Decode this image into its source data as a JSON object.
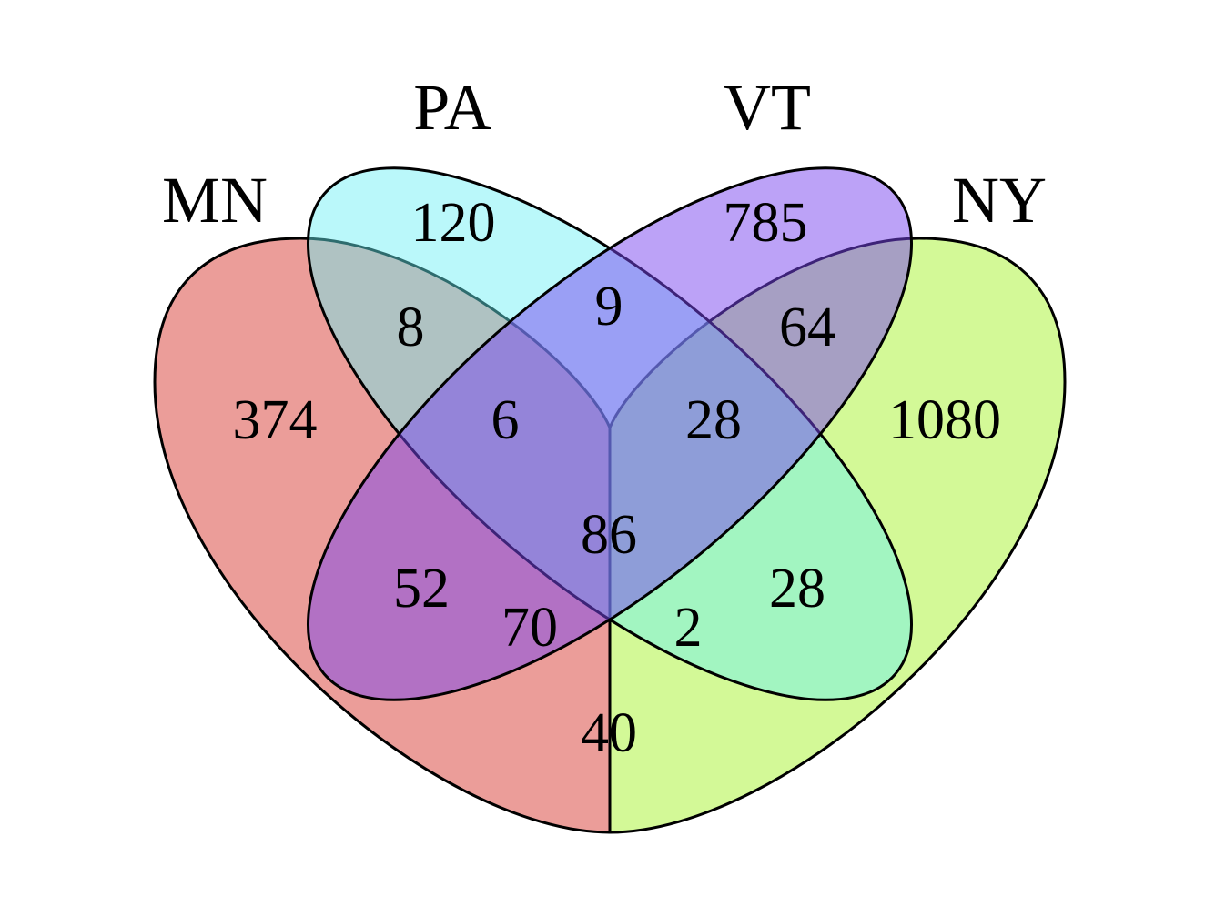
{
  "sets": [
    {
      "id": "MN",
      "label": "MN",
      "color": "#E26F69"
    },
    {
      "id": "PA",
      "label": "PA",
      "color": "#66F0F4"
    },
    {
      "id": "VT",
      "label": "VT",
      "color": "#7A45F0"
    },
    {
      "id": "NY",
      "label": "NY",
      "color": "#B4F54C"
    }
  ],
  "regions": [
    {
      "sets": [
        "MN"
      ],
      "count": "374"
    },
    {
      "sets": [
        "PA"
      ],
      "count": "120"
    },
    {
      "sets": [
        "VT"
      ],
      "count": "785"
    },
    {
      "sets": [
        "NY"
      ],
      "count": "1080"
    },
    {
      "sets": [
        "MN",
        "PA"
      ],
      "count": "8"
    },
    {
      "sets": [
        "PA",
        "VT"
      ],
      "count": "9"
    },
    {
      "sets": [
        "VT",
        "NY"
      ],
      "count": "64"
    },
    {
      "sets": [
        "MN",
        "PA",
        "VT"
      ],
      "count": "6"
    },
    {
      "sets": [
        "PA",
        "VT",
        "NY"
      ],
      "count": "28"
    },
    {
      "sets": [
        "MN",
        "PA",
        "VT",
        "NY"
      ],
      "count": "86"
    },
    {
      "sets": [
        "MN",
        "VT"
      ],
      "count": "52"
    },
    {
      "sets": [
        "PA",
        "NY"
      ],
      "count": "28"
    },
    {
      "sets": [
        "MN",
        "VT",
        "NY"
      ],
      "count": "70"
    },
    {
      "sets": [
        "MN",
        "PA",
        "NY"
      ],
      "count": "2"
    },
    {
      "sets": [
        "MN",
        "NY"
      ],
      "count": "40"
    }
  ]
}
